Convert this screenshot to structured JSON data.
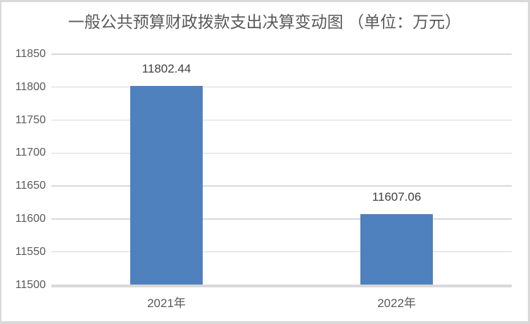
{
  "chart_data": {
    "type": "bar",
    "title": "一般公共预算财政拨款支出决算变动图 （单位：万元）",
    "categories": [
      "2021年",
      "2022年"
    ],
    "values": [
      11802.44,
      11607.06
    ],
    "value_labels": [
      "11802.44",
      "11607.06"
    ],
    "ylim": [
      11500,
      11850
    ],
    "ytick_step": 50,
    "yticks": [
      11850,
      11800,
      11750,
      11700,
      11650,
      11600,
      11550,
      11500
    ],
    "grid": true,
    "legend_position": "none",
    "xlabel": "",
    "ylabel": "",
    "colors": {
      "bar_fill": "#4E81BD",
      "gridline": "#D9D9D9",
      "axis_line": "#D9D9D9",
      "title_text": "#595959",
      "tick_label_text": "#595959",
      "data_label_text": "#404040",
      "background": "#FFFFFF",
      "frame_border": "#D9D9D9"
    }
  }
}
